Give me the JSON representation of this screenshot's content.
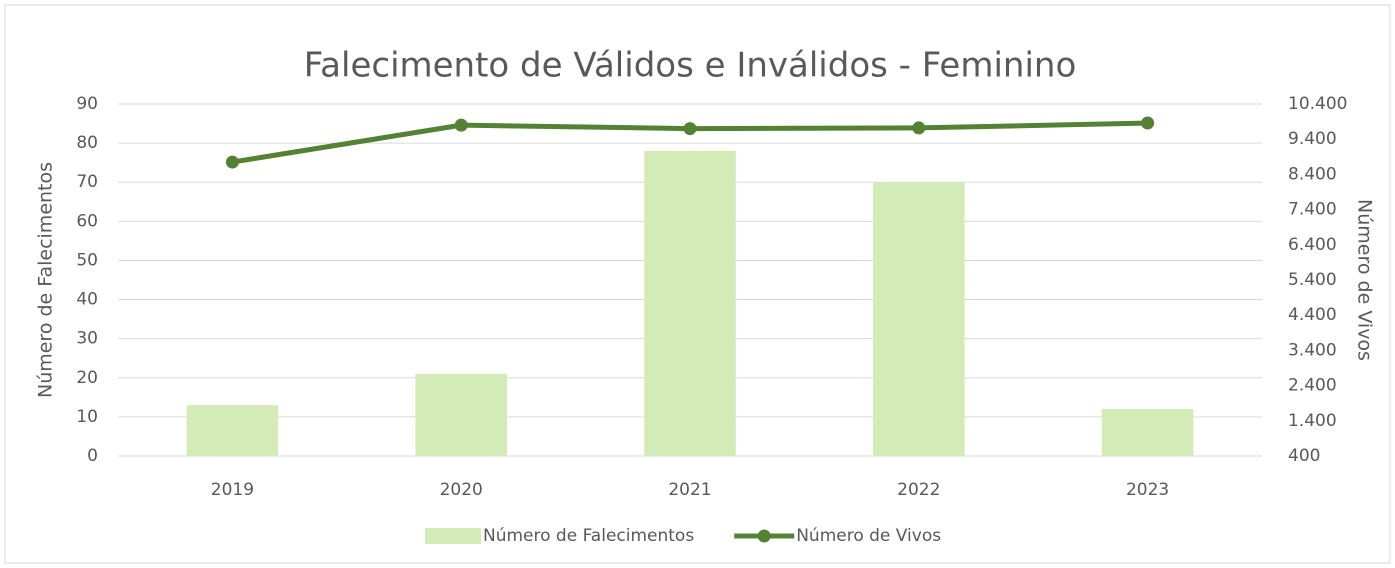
{
  "chart_data": {
    "type": "bar",
    "title": "Falecimento de Válidos e Inválidos - Feminino",
    "y_label": "Número de Falecimentos",
    "y2_label": "Número de Vivos",
    "categories": [
      "2019",
      "2020",
      "2021",
      "2022",
      "2023"
    ],
    "series": [
      {
        "name": "Número de Falecimentos",
        "type": "bar",
        "color": "#d3ebb7",
        "values": [
          13,
          21,
          78,
          70,
          12
        ]
      },
      {
        "name": "Número de Vivos",
        "type": "line",
        "axis": "y2",
        "color": "#548235",
        "values": [
          8750,
          9800,
          9700,
          9720,
          9860
        ]
      }
    ],
    "ylim": [
      0,
      90
    ],
    "yticks": [
      0,
      10,
      20,
      30,
      40,
      50,
      60,
      70,
      80,
      90
    ],
    "y2lim": [
      400,
      10400
    ],
    "y2ticks": [
      400,
      {
        "value": 1400,
        "label": "1.400"
      },
      {
        "value": 2400,
        "label": "2.400"
      },
      {
        "value": 3400,
        "label": "3.400"
      },
      {
        "value": 4400,
        "label": "4.400"
      },
      {
        "value": 5400,
        "label": "5.400"
      },
      {
        "value": 6400,
        "label": "6.400"
      },
      {
        "value": 7400,
        "label": "7.400"
      },
      {
        "value": 8400,
        "label": "8.400"
      },
      {
        "value": 9400,
        "label": "9.400"
      },
      {
        "value": 10400,
        "label": "10.400"
      }
    ],
    "grid": true,
    "legend": "bottom"
  }
}
